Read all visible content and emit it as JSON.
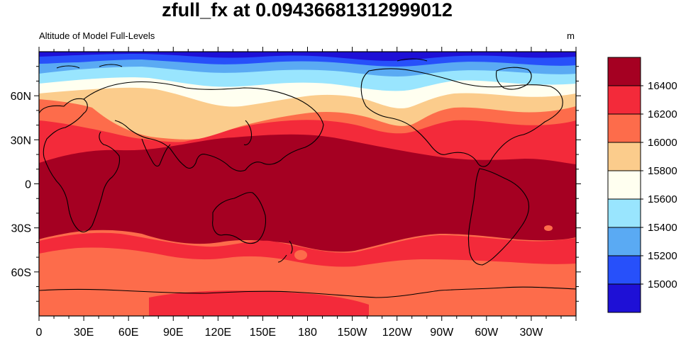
{
  "title": "zfull_fx at 0.09436681312999012",
  "left_label": "Altitude of Model Full-Levels",
  "right_label": "m",
  "map": {
    "projection": "cylindrical-equidistant",
    "lon_range": [
      0,
      360
    ],
    "lat_range": [
      -90,
      90
    ],
    "center_lon": 180,
    "x_ticks": [
      "0",
      "30E",
      "60E",
      "90E",
      "120E",
      "150E",
      "180",
      "150W",
      "120W",
      "90W",
      "60W",
      "30W"
    ],
    "y_ticks": [
      "60N",
      "30N",
      "0",
      "30S",
      "60S"
    ]
  },
  "colorbar": {
    "levels": [
      "16400",
      "16200",
      "16000",
      "15800",
      "15600",
      "15400",
      "15200",
      "15000"
    ],
    "colors": [
      "#a50022",
      "#f32a3a",
      "#fd6c4b",
      "#fbcc8c",
      "#fffff0",
      "#99e5fe",
      "#5aaaf3",
      "#2750fa",
      "#1e10d6"
    ]
  }
}
